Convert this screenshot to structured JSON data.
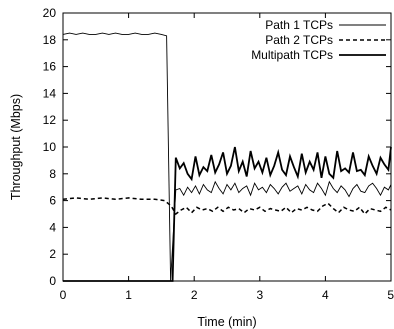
{
  "chart_data": {
    "type": "line",
    "title": "",
    "xlabel": "Time (min)",
    "ylabel": "Throughput (Mbps)",
    "xlim": [
      0,
      5
    ],
    "ylim": [
      0,
      20
    ],
    "xticks": [
      "0",
      "1",
      "2",
      "3",
      "4",
      "5"
    ],
    "yticks": [
      "0",
      "2",
      "4",
      "6",
      "8",
      "10",
      "12",
      "14",
      "16",
      "18",
      "20"
    ],
    "grid": false,
    "legend_position": "top-right",
    "series": [
      {
        "name": "Path 1 TCPs",
        "style": "thin-solid",
        "color": "#000000",
        "x": [
          0,
          0.1,
          0.2,
          0.3,
          0.4,
          0.5,
          0.6,
          0.7,
          0.8,
          0.9,
          1.0,
          1.1,
          1.2,
          1.3,
          1.4,
          1.5,
          1.58,
          1.64,
          1.72,
          1.78,
          1.84,
          1.9,
          1.96,
          2.02,
          2.08,
          2.14,
          2.2,
          2.26,
          2.32,
          2.38,
          2.44,
          2.5,
          2.56,
          2.62,
          2.68,
          2.74,
          2.8,
          2.86,
          2.92,
          2.98,
          3.04,
          3.1,
          3.16,
          3.22,
          3.28,
          3.34,
          3.4,
          3.46,
          3.52,
          3.58,
          3.64,
          3.7,
          3.76,
          3.82,
          3.88,
          3.94,
          4.0,
          4.06,
          4.12,
          4.18,
          4.24,
          4.3,
          4.36,
          4.42,
          4.48,
          4.54,
          4.6,
          4.66,
          4.72,
          4.78,
          4.84,
          4.9,
          4.96,
          5.0
        ],
        "y": [
          18.4,
          18.5,
          18.4,
          18.5,
          18.4,
          18.4,
          18.5,
          18.4,
          18.5,
          18.4,
          18.4,
          18.5,
          18.4,
          18.4,
          18.5,
          18.4,
          18.3,
          0.0,
          6.8,
          6.9,
          6.4,
          7.0,
          6.6,
          7.1,
          6.5,
          7.2,
          6.8,
          6.6,
          7.4,
          6.9,
          6.5,
          7.2,
          6.8,
          7.3,
          6.6,
          6.9,
          7.1,
          6.4,
          7.3,
          6.8,
          7.0,
          6.6,
          7.2,
          6.9,
          6.5,
          7.0,
          7.3,
          6.7,
          6.9,
          7.1,
          6.5,
          7.2,
          6.8,
          6.6,
          7.3,
          6.9,
          6.4,
          7.4,
          6.9,
          6.6,
          7.1,
          6.8,
          6.3,
          6.9,
          7.2,
          6.7,
          6.6,
          7.1,
          7.3,
          6.9,
          6.4,
          7.0,
          6.8,
          7.2
        ]
      },
      {
        "name": "Path 2 TCPs",
        "style": "dashed",
        "color": "#000000",
        "x": [
          0,
          0.2,
          0.4,
          0.6,
          0.8,
          1.0,
          1.2,
          1.4,
          1.55,
          1.65,
          1.72,
          1.8,
          1.88,
          1.96,
          2.04,
          2.12,
          2.2,
          2.28,
          2.36,
          2.44,
          2.52,
          2.6,
          2.68,
          2.76,
          2.84,
          2.92,
          3.0,
          3.08,
          3.16,
          3.24,
          3.32,
          3.4,
          3.48,
          3.56,
          3.64,
          3.72,
          3.8,
          3.88,
          3.96,
          4.04,
          4.12,
          4.2,
          4.28,
          4.36,
          4.44,
          4.52,
          4.6,
          4.68,
          4.76,
          4.84,
          4.92,
          5.0
        ],
        "y": [
          6.1,
          6.2,
          6.1,
          6.2,
          6.1,
          6.2,
          6.1,
          6.1,
          6.0,
          5.6,
          5.0,
          5.3,
          5.5,
          5.1,
          5.5,
          5.3,
          5.4,
          5.2,
          5.5,
          5.2,
          5.5,
          5.3,
          5.4,
          5.1,
          5.4,
          5.3,
          5.5,
          5.2,
          5.4,
          5.3,
          5.2,
          5.5,
          5.1,
          5.4,
          5.3,
          5.5,
          5.3,
          5.2,
          5.6,
          5.8,
          5.4,
          5.1,
          5.5,
          5.3,
          5.2,
          5.5,
          5.0,
          5.4,
          5.3,
          5.2,
          5.5,
          5.3
        ]
      },
      {
        "name": "Multipath TCPs",
        "style": "thick-solid",
        "color": "#000000",
        "x": [
          0,
          0.5,
          1.0,
          1.5,
          1.65,
          1.67,
          1.72,
          1.78,
          1.84,
          1.9,
          1.96,
          2.02,
          2.08,
          2.14,
          2.2,
          2.26,
          2.32,
          2.38,
          2.44,
          2.5,
          2.56,
          2.62,
          2.68,
          2.74,
          2.8,
          2.86,
          2.92,
          2.98,
          3.04,
          3.1,
          3.16,
          3.22,
          3.28,
          3.34,
          3.4,
          3.46,
          3.52,
          3.58,
          3.64,
          3.7,
          3.76,
          3.82,
          3.88,
          3.94,
          4.0,
          4.06,
          4.12,
          4.18,
          4.24,
          4.3,
          4.36,
          4.42,
          4.48,
          4.54,
          4.6,
          4.66,
          4.72,
          4.78,
          4.84,
          4.9,
          4.96,
          5.0
        ],
        "y": [
          0,
          0,
          0,
          0,
          0,
          0,
          9.2,
          8.4,
          8.8,
          8.0,
          7.6,
          9.3,
          7.9,
          8.5,
          8.2,
          9.4,
          8.1,
          8.7,
          9.6,
          8.0,
          8.6,
          10.0,
          8.2,
          8.9,
          7.8,
          9.7,
          8.4,
          8.9,
          8.1,
          9.2,
          7.9,
          8.6,
          9.6,
          8.3,
          7.9,
          9.3,
          8.5,
          7.8,
          9.5,
          8.1,
          8.9,
          8.3,
          9.6,
          7.7,
          9.3,
          8.0,
          7.7,
          9.7,
          8.2,
          8.4,
          8.1,
          9.6,
          8.2,
          8.3,
          7.9,
          9.3,
          8.6,
          8.0,
          9.2,
          8.7,
          8.3,
          10.0
        ]
      }
    ]
  }
}
